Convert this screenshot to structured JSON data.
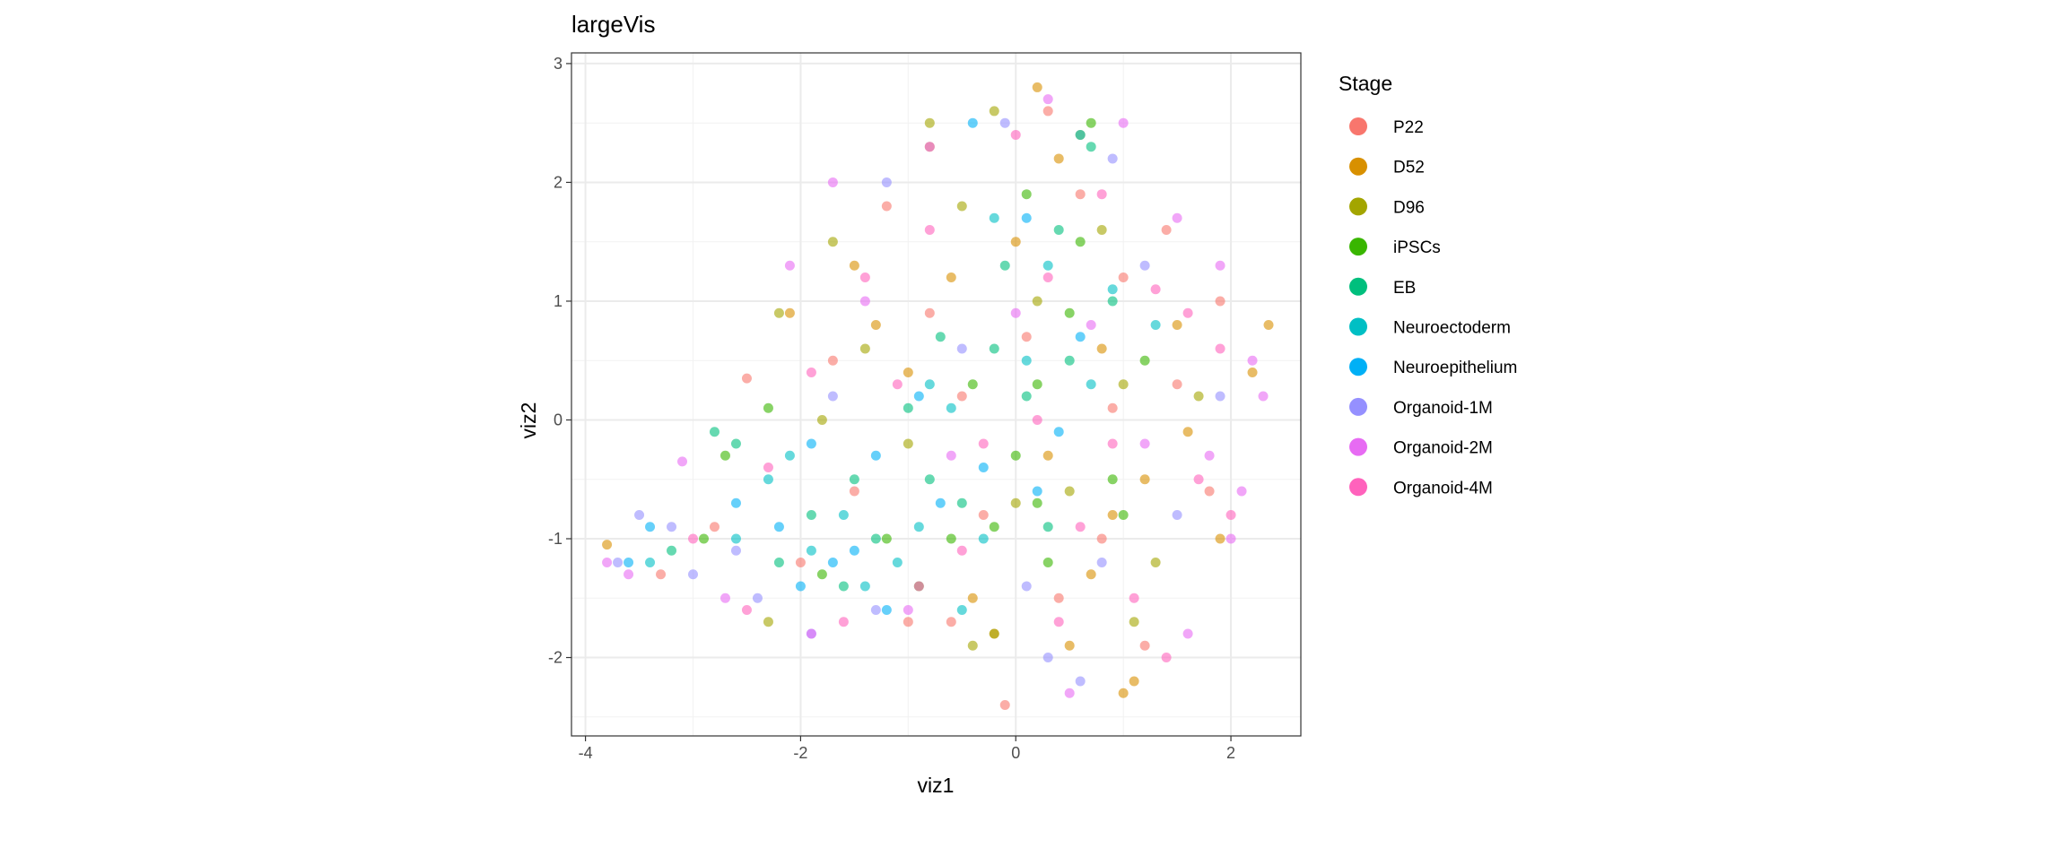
{
  "chart_data": {
    "type": "scatter",
    "title": "largeVis",
    "xlabel": "viz1",
    "ylabel": "viz2",
    "xlim": [
      -4.13,
      2.65
    ],
    "ylim": [
      -2.66,
      3.09
    ],
    "x_ticks": [
      -4,
      -2,
      0,
      2
    ],
    "y_ticks": [
      -2,
      -1,
      0,
      1,
      2,
      3
    ],
    "x_tick_labels": [
      "-4",
      "-2",
      "0",
      "2"
    ],
    "y_tick_labels": [
      "-2",
      "-1",
      "0",
      "1",
      "2",
      "3"
    ],
    "grid": true,
    "legend": {
      "title": "Stage",
      "position": "right"
    },
    "point_alpha": 0.6,
    "series": [
      {
        "name": "P22",
        "color": "#F8766D",
        "points": [
          [
            -2.5,
            0.35
          ],
          [
            -1.2,
            1.8
          ],
          [
            0.3,
            2.6
          ],
          [
            1.0,
            1.2
          ],
          [
            1.5,
            0.3
          ],
          [
            -0.5,
            0.2
          ],
          [
            -1.5,
            -0.6
          ],
          [
            -2.8,
            -0.9
          ],
          [
            -0.1,
            -2.4
          ],
          [
            0.8,
            -1.0
          ],
          [
            1.8,
            -0.6
          ],
          [
            -1.0,
            -1.7
          ],
          [
            -0.8,
            0.9
          ],
          [
            0.4,
            -1.5
          ],
          [
            1.2,
            -1.9
          ],
          [
            -2.0,
            -1.2
          ],
          [
            0.6,
            1.9
          ],
          [
            1.9,
            1.0
          ],
          [
            -1.7,
            0.5
          ],
          [
            -0.3,
            -0.8
          ],
          [
            0.9,
            0.1
          ],
          [
            -3.3,
            -1.3
          ],
          [
            1.4,
            1.6
          ],
          [
            -0.6,
            -1.7
          ],
          [
            0.1,
            0.7
          ]
        ]
      },
      {
        "name": "D52",
        "color": "#D89000",
        "points": [
          [
            2.35,
            0.8
          ],
          [
            1.0,
            -2.3
          ],
          [
            0.2,
            2.8
          ],
          [
            -0.8,
            2.3
          ],
          [
            -1.5,
            1.3
          ],
          [
            -2.1,
            0.9
          ],
          [
            0.5,
            -1.9
          ],
          [
            1.2,
            -0.5
          ],
          [
            0.8,
            0.6
          ],
          [
            -0.2,
            -1.8
          ],
          [
            1.9,
            -1.0
          ],
          [
            0.3,
            -0.3
          ],
          [
            -1.0,
            0.4
          ],
          [
            0.0,
            1.5
          ],
          [
            1.5,
            0.8
          ],
          [
            -3.8,
            -1.05
          ],
          [
            0.7,
            -1.3
          ],
          [
            1.1,
            -2.2
          ],
          [
            -0.4,
            -1.5
          ],
          [
            1.6,
            -0.1
          ],
          [
            -1.3,
            0.8
          ],
          [
            0.4,
            2.2
          ],
          [
            2.2,
            0.4
          ],
          [
            0.9,
            -0.8
          ],
          [
            -0.6,
            1.2
          ]
        ]
      },
      {
        "name": "D96",
        "color": "#A3A500",
        "points": [
          [
            -0.8,
            2.5
          ],
          [
            -0.2,
            2.6
          ],
          [
            0.6,
            2.4
          ],
          [
            -1.7,
            1.5
          ],
          [
            -2.2,
            0.9
          ],
          [
            -1.4,
            0.6
          ],
          [
            -0.5,
            1.8
          ],
          [
            0.2,
            1.0
          ],
          [
            1.0,
            0.3
          ],
          [
            -0.2,
            -1.8
          ],
          [
            -0.4,
            -1.9
          ],
          [
            1.3,
            -1.2
          ],
          [
            0.5,
            -0.6
          ],
          [
            -2.3,
            -1.7
          ],
          [
            -1.0,
            -0.2
          ],
          [
            1.7,
            0.2
          ],
          [
            0.8,
            1.6
          ],
          [
            -1.8,
            0.0
          ],
          [
            0.0,
            -0.7
          ],
          [
            1.1,
            -1.7
          ]
        ]
      },
      {
        "name": "iPSCs",
        "color": "#39B600",
        "points": [
          [
            0.0,
            -0.3
          ],
          [
            0.2,
            0.3
          ],
          [
            -0.2,
            -0.9
          ],
          [
            0.5,
            0.9
          ],
          [
            -0.6,
            -1.0
          ],
          [
            0.9,
            -0.5
          ],
          [
            0.3,
            -1.2
          ],
          [
            -1.2,
            -1.0
          ],
          [
            -1.8,
            -1.3
          ],
          [
            0.7,
            2.5
          ],
          [
            0.1,
            1.9
          ],
          [
            -2.7,
            -0.3
          ],
          [
            -2.3,
            0.1
          ],
          [
            1.0,
            -0.8
          ],
          [
            -0.4,
            0.3
          ],
          [
            0.6,
            1.5
          ],
          [
            -0.9,
            -1.4
          ],
          [
            0.2,
            -0.7
          ],
          [
            -2.9,
            -1.0
          ],
          [
            1.2,
            0.5
          ]
        ]
      },
      {
        "name": "EB",
        "color": "#00BF7D",
        "points": [
          [
            -2.6,
            -0.2
          ],
          [
            -2.8,
            -0.1
          ],
          [
            -1.5,
            -0.5
          ],
          [
            -1.0,
            0.1
          ],
          [
            -0.2,
            0.6
          ],
          [
            0.4,
            1.6
          ],
          [
            0.7,
            2.3
          ],
          [
            -0.5,
            -0.7
          ],
          [
            -1.3,
            -1.0
          ],
          [
            -0.8,
            -0.5
          ],
          [
            0.1,
            0.2
          ],
          [
            -1.9,
            -0.8
          ],
          [
            -2.2,
            -1.2
          ],
          [
            0.5,
            0.5
          ],
          [
            -0.1,
            1.3
          ],
          [
            -3.2,
            -1.1
          ],
          [
            0.9,
            1.0
          ],
          [
            -0.7,
            0.7
          ],
          [
            -1.6,
            -1.4
          ],
          [
            0.3,
            -0.9
          ]
        ]
      },
      {
        "name": "Neuroectoderm",
        "color": "#00BFC4",
        "points": [
          [
            -2.3,
            -0.5
          ],
          [
            -2.1,
            -0.3
          ],
          [
            -1.4,
            -1.4
          ],
          [
            -0.9,
            -0.9
          ],
          [
            -0.3,
            -1.0
          ],
          [
            0.1,
            0.5
          ],
          [
            0.6,
            2.4
          ],
          [
            0.9,
            1.1
          ],
          [
            -1.6,
            -0.8
          ],
          [
            -0.6,
            0.1
          ],
          [
            0.3,
            1.3
          ],
          [
            -1.1,
            -1.2
          ],
          [
            -2.6,
            -1.0
          ],
          [
            -3.4,
            -1.2
          ],
          [
            0.7,
            0.3
          ],
          [
            -0.5,
            -1.6
          ],
          [
            -0.2,
            1.7
          ],
          [
            -1.9,
            -1.1
          ],
          [
            1.3,
            0.8
          ],
          [
            -0.8,
            0.3
          ]
        ]
      },
      {
        "name": "Neuroepithelium",
        "color": "#00B0F6",
        "points": [
          [
            -1.9,
            -0.2
          ],
          [
            -0.7,
            -0.7
          ],
          [
            -1.7,
            -1.2
          ],
          [
            -2.0,
            -1.4
          ],
          [
            -3.6,
            -1.2
          ],
          [
            -3.4,
            -0.9
          ],
          [
            -2.2,
            -0.9
          ],
          [
            -0.3,
            -0.4
          ],
          [
            0.2,
            -0.6
          ],
          [
            -0.4,
            2.5
          ],
          [
            0.1,
            1.7
          ],
          [
            0.6,
            0.7
          ],
          [
            -1.3,
            -0.3
          ],
          [
            -1.2,
            -1.6
          ],
          [
            -0.9,
            0.2
          ],
          [
            -2.6,
            -0.7
          ],
          [
            0.4,
            -0.1
          ],
          [
            -1.5,
            -1.1
          ]
        ]
      },
      {
        "name": "Organoid-1M",
        "color": "#9590FF",
        "points": [
          [
            -3.5,
            -0.8
          ],
          [
            -3.7,
            -1.2
          ],
          [
            -3.2,
            -0.9
          ],
          [
            -3.0,
            -1.3
          ],
          [
            -2.4,
            -1.5
          ],
          [
            -1.9,
            -1.8
          ],
          [
            -1.3,
            -1.6
          ],
          [
            0.6,
            -2.2
          ],
          [
            0.3,
            -2.0
          ],
          [
            -0.1,
            2.5
          ],
          [
            -1.2,
            2.0
          ],
          [
            0.8,
            -1.2
          ],
          [
            1.5,
            -0.8
          ],
          [
            1.9,
            0.2
          ],
          [
            -0.5,
            0.6
          ],
          [
            0.9,
            2.2
          ],
          [
            -1.7,
            0.2
          ],
          [
            0.1,
            -1.4
          ],
          [
            1.2,
            1.3
          ],
          [
            -2.6,
            -1.1
          ]
        ]
      },
      {
        "name": "Organoid-2M",
        "color": "#E76BF3",
        "points": [
          [
            -3.8,
            -1.2
          ],
          [
            -3.1,
            -0.35
          ],
          [
            -2.1,
            1.3
          ],
          [
            -1.7,
            2.0
          ],
          [
            -0.8,
            2.3
          ],
          [
            1.0,
            2.5
          ],
          [
            1.5,
            1.7
          ],
          [
            1.9,
            1.3
          ],
          [
            2.2,
            0.5
          ],
          [
            2.3,
            0.2
          ],
          [
            2.1,
            -0.6
          ],
          [
            2.0,
            -1.0
          ],
          [
            1.6,
            -1.8
          ],
          [
            0.5,
            -2.3
          ],
          [
            -1.9,
            -1.8
          ],
          [
            -2.7,
            -1.5
          ],
          [
            -3.6,
            -1.3
          ],
          [
            -1.0,
            -1.6
          ],
          [
            0.0,
            0.9
          ],
          [
            1.2,
            -0.2
          ],
          [
            -0.6,
            -0.3
          ],
          [
            0.7,
            0.8
          ],
          [
            1.8,
            -0.3
          ],
          [
            -1.4,
            1.0
          ],
          [
            0.3,
            2.7
          ]
        ]
      },
      {
        "name": "Organoid-4M",
        "color": "#FF62BC",
        "points": [
          [
            -2.5,
            -1.6
          ],
          [
            -1.6,
            -1.7
          ],
          [
            -0.9,
            -1.4
          ],
          [
            -0.3,
            -0.2
          ],
          [
            0.4,
            -1.7
          ],
          [
            1.1,
            -1.5
          ],
          [
            1.7,
            -0.5
          ],
          [
            1.9,
            0.6
          ],
          [
            1.3,
            1.1
          ],
          [
            0.8,
            1.9
          ],
          [
            0.0,
            2.4
          ],
          [
            -0.8,
            1.6
          ],
          [
            -1.4,
            1.2
          ],
          [
            -1.9,
            0.4
          ],
          [
            -2.3,
            -0.4
          ],
          [
            -3.0,
            -1.0
          ],
          [
            0.2,
            0.0
          ],
          [
            0.9,
            -0.2
          ],
          [
            -0.5,
            -1.1
          ],
          [
            1.4,
            -2.0
          ],
          [
            0.6,
            -0.9
          ],
          [
            1.6,
            0.9
          ],
          [
            -1.1,
            0.3
          ],
          [
            0.3,
            1.2
          ],
          [
            2.0,
            -0.8
          ]
        ]
      }
    ]
  }
}
